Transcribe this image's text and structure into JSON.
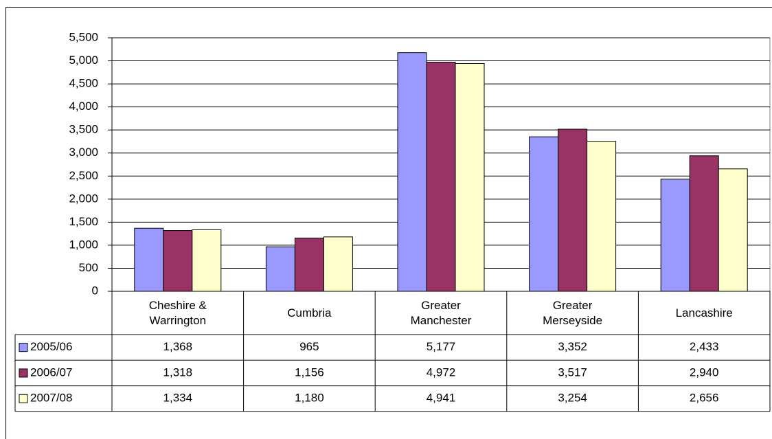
{
  "chart_data": {
    "type": "bar",
    "categories": [
      "Cheshire & Warrington",
      "Cumbria",
      "Greater Manchester",
      "Greater Merseyside",
      "Lancashire"
    ],
    "series": [
      {
        "name": "2005/06",
        "color": "#9999ff",
        "values": [
          1368,
          965,
          5177,
          3352,
          2433
        ],
        "value_labels": [
          "1,368",
          "965",
          "5,177",
          "3,352",
          "2,433"
        ]
      },
      {
        "name": "2006/07",
        "color": "#993366",
        "values": [
          1318,
          1156,
          4972,
          3517,
          2940
        ],
        "value_labels": [
          "1,318",
          "1,156",
          "4,972",
          "3,517",
          "2,940"
        ]
      },
      {
        "name": "2007/08",
        "color": "#ffffcc",
        "values": [
          1334,
          1180,
          4941,
          3254,
          2656
        ],
        "value_labels": [
          "1,334",
          "1,180",
          "4,941",
          "3,254",
          "2,656"
        ]
      }
    ],
    "ylim": [
      0,
      5500
    ],
    "yticks": [
      0,
      500,
      {
        "value": 1000,
        "label": "1,000"
      },
      {
        "value": 1500,
        "label": "1,500"
      },
      {
        "value": 2000,
        "label": "2,000"
      },
      {
        "value": 2500,
        "label": "2,500"
      },
      {
        "value": 3000,
        "label": "3,000"
      },
      {
        "value": 3500,
        "label": "3,500"
      },
      {
        "value": 4000,
        "label": "4,000"
      },
      {
        "value": 4500,
        "label": "4,500"
      },
      {
        "value": 5000,
        "label": "5,000"
      },
      {
        "value": 5500,
        "label": "5,500"
      }
    ],
    "grid": true,
    "data_table": true
  }
}
